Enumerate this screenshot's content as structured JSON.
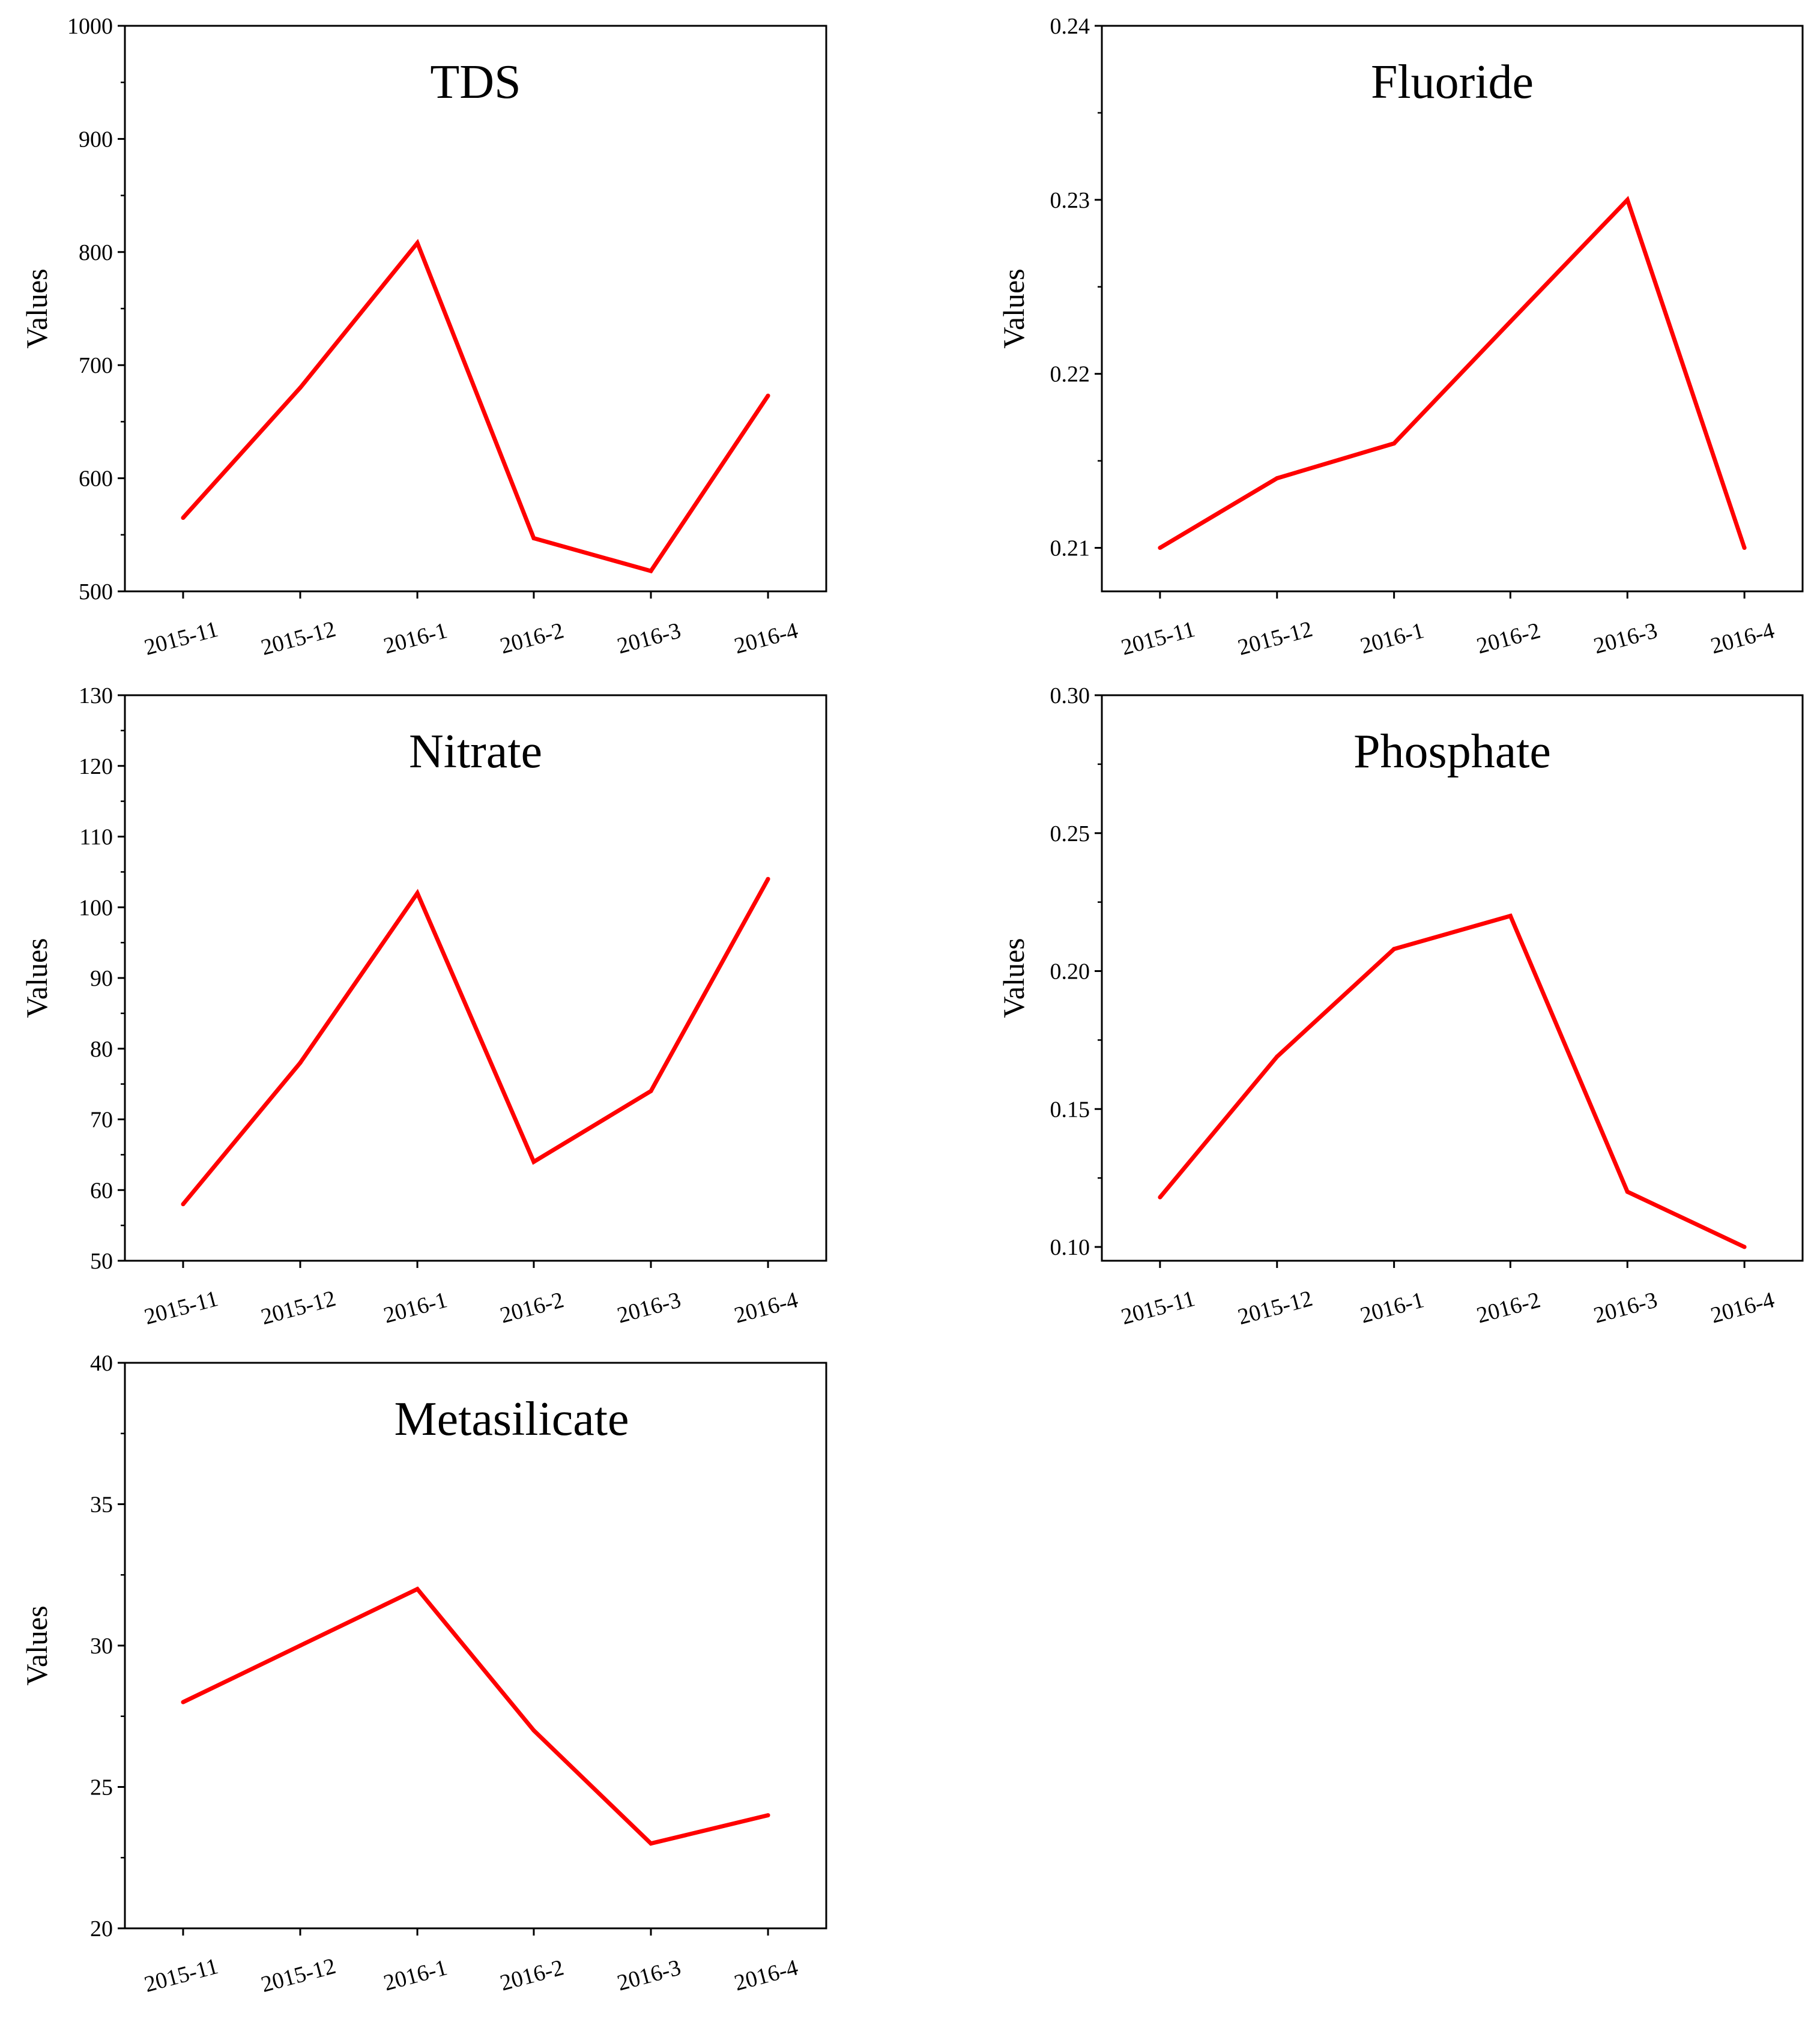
{
  "figure": {
    "line_color": "#ff0000",
    "axis_color": "#000000",
    "background": "#ffffff"
  },
  "chart_data": [
    {
      "type": "line",
      "title": "TDS",
      "xlabel": "",
      "ylabel": "Values",
      "categories": [
        "2015-11",
        "2015-12",
        "2016-1",
        "2016-2",
        "2016-3",
        "2016-4"
      ],
      "values": [
        565,
        680,
        808,
        547,
        518,
        673
      ],
      "ylim": [
        500,
        1000
      ],
      "yticks": [
        500,
        600,
        700,
        800,
        900,
        1000
      ],
      "ytick_labels": [
        "500",
        "600",
        "700",
        "800",
        "900",
        "1000"
      ],
      "grid": false
    },
    {
      "type": "line",
      "title": "Fluoride",
      "xlabel": "",
      "ylabel": "Values",
      "categories": [
        "2015-11",
        "2015-12",
        "2016-1",
        "2016-2",
        "2016-3",
        "2016-4"
      ],
      "values": [
        0.21,
        0.214,
        0.216,
        0.223,
        0.23,
        0.21
      ],
      "ylim": [
        0.2075,
        0.24
      ],
      "yticks": [
        0.21,
        0.22,
        0.23,
        0.24
      ],
      "ytick_labels": [
        "0.21",
        "0.22",
        "0.23",
        "0.24"
      ],
      "grid": false
    },
    {
      "type": "line",
      "title": "Nitrate",
      "xlabel": "",
      "ylabel": "Values",
      "categories": [
        "2015-11",
        "2015-12",
        "2016-1",
        "2016-2",
        "2016-3",
        "2016-4"
      ],
      "values": [
        58,
        78,
        102,
        64,
        74,
        104
      ],
      "ylim": [
        50,
        130
      ],
      "yticks": [
        50,
        60,
        70,
        80,
        90,
        100,
        110,
        120,
        130
      ],
      "ytick_labels": [
        "50",
        "60",
        "70",
        "80",
        "90",
        "100",
        "110",
        "120",
        "130"
      ],
      "grid": false
    },
    {
      "type": "line",
      "title": "Phosphate",
      "xlabel": "",
      "ylabel": "Values",
      "categories": [
        "2015-11",
        "2015-12",
        "2016-1",
        "2016-2",
        "2016-3",
        "2016-4"
      ],
      "values": [
        0.118,
        0.169,
        0.208,
        0.22,
        0.12,
        0.1
      ],
      "ylim": [
        0.095,
        0.3
      ],
      "yticks": [
        0.1,
        0.15,
        0.2,
        0.25,
        0.3
      ],
      "ytick_labels": [
        "0.10",
        "0.15",
        "0.20",
        "0.25",
        "0.30"
      ],
      "grid": false
    },
    {
      "type": "line",
      "title": "Metasilicate",
      "xlabel": "",
      "ylabel": "Values",
      "categories": [
        "2015-11",
        "2015-12",
        "2016-1",
        "2016-2",
        "2016-3",
        "2016-4"
      ],
      "values": [
        28,
        30,
        32,
        27,
        23,
        24
      ],
      "ylim": [
        20,
        40
      ],
      "yticks": [
        20,
        25,
        30,
        35,
        40
      ],
      "ytick_labels": [
        "20",
        "25",
        "30",
        "35",
        "40"
      ],
      "grid": false
    }
  ]
}
